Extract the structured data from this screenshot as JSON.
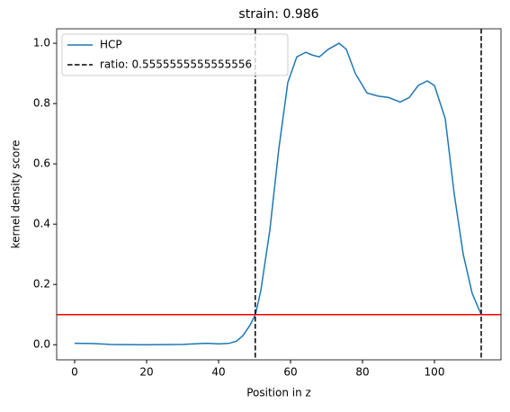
{
  "chart_data": {
    "type": "line",
    "title": "strain: 0.986",
    "xlabel": "Position in z",
    "ylabel": "kernel density score",
    "x": [
      0,
      5,
      10,
      20,
      30,
      35,
      37,
      40,
      43,
      45,
      46.75,
      48.75,
      50.25,
      51.75,
      54.25,
      56.75,
      59.25,
      61.75,
      64.25,
      66.25,
      68,
      70.5,
      73.5,
      75.5,
      78,
      81.25,
      84.25,
      87.25,
      90.5,
      93,
      95.5,
      98,
      100,
      103,
      105.5,
      108,
      110.5,
      113
    ],
    "series": [
      {
        "name": "HCP",
        "color": "#1f77b4",
        "values": [
          0.005,
          0.004,
          0.001,
          0.0,
          0.001,
          0.004,
          0.005,
          0.003,
          0.005,
          0.012,
          0.03,
          0.065,
          0.1,
          0.18,
          0.38,
          0.65,
          0.87,
          0.955,
          0.97,
          0.96,
          0.955,
          0.98,
          1.0,
          0.98,
          0.9,
          0.835,
          0.825,
          0.82,
          0.805,
          0.82,
          0.86,
          0.875,
          0.86,
          0.75,
          0.5,
          0.3,
          0.17,
          0.1
        ]
      }
    ],
    "vlines": {
      "name": "ratio: 0.5555555555555556",
      "color": "#000000",
      "values": [
        50.2,
        113
      ]
    },
    "hline": {
      "value": 0.1,
      "color": "#ff0000"
    },
    "legend": "upper left",
    "xlim": [
      -5,
      118.5
    ],
    "xticks": [
      0,
      20,
      40,
      60,
      80,
      100
    ],
    "ylim": [
      -0.05,
      1.048
    ],
    "yticks": [
      {
        "value": 0,
        "label": "0.0"
      },
      {
        "value": 0.2,
        "label": "0.2"
      },
      {
        "value": 0.4,
        "label": "0.4"
      },
      {
        "value": 0.6,
        "label": "0.6"
      },
      {
        "value": 0.8,
        "label": "0.8"
      },
      {
        "value": 1,
        "label": "1.0"
      }
    ]
  }
}
